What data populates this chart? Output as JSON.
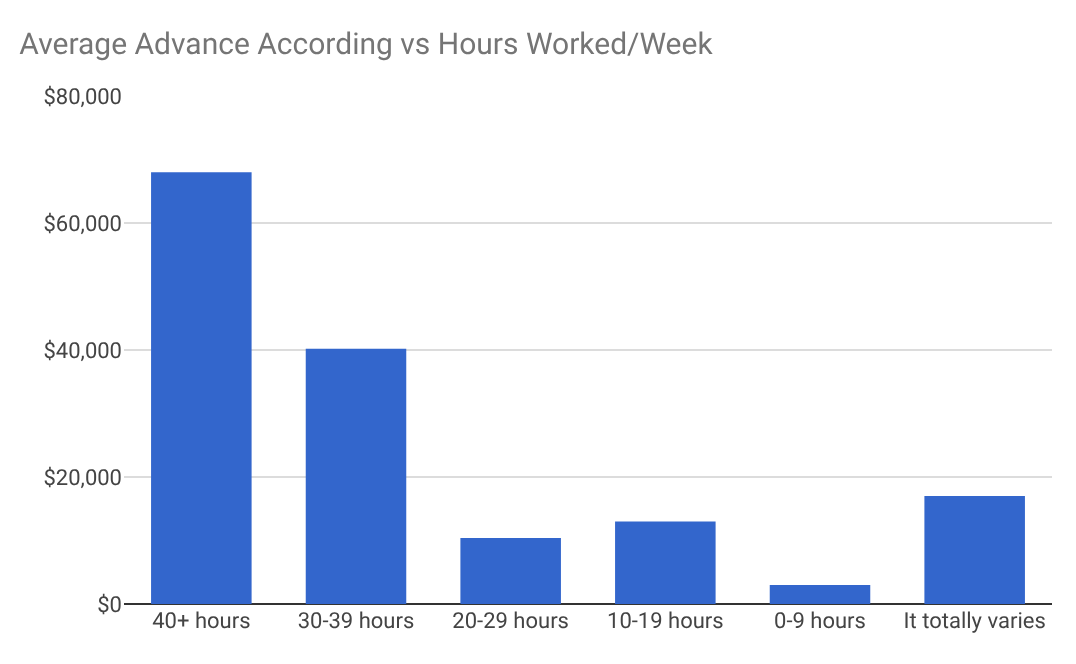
{
  "chart_data": {
    "type": "bar",
    "title": "Average Advance According vs Hours Worked/Week",
    "categories": [
      "40+ hours",
      "30-39 hours",
      "20-29 hours",
      "10-19 hours",
      "0-9 hours",
      "It totally varies"
    ],
    "values": [
      68000,
      40200,
      10400,
      13000,
      3000,
      17000
    ],
    "color": "#3366cc",
    "ylim": [
      0,
      80000
    ],
    "yticks": [
      {
        "value": 0,
        "label": "$0"
      },
      {
        "value": 20000,
        "label": "$20,000"
      },
      {
        "value": 40000,
        "label": "$40,000"
      },
      {
        "value": 60000,
        "label": "$60,000"
      },
      {
        "value": 80000,
        "label": "$80,000"
      }
    ],
    "grid": "y",
    "legend": false
  }
}
